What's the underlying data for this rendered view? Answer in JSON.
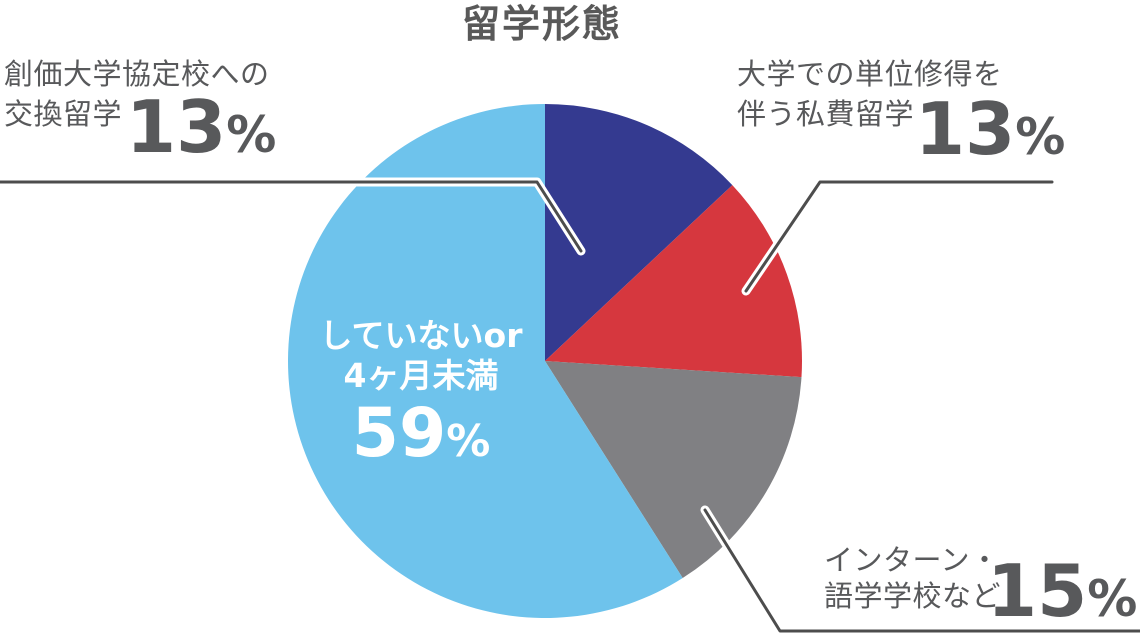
{
  "title": "留学形態",
  "chart_data": {
    "type": "pie",
    "title": "留学形態",
    "unit": "%",
    "direction": "clockwise",
    "start": "top",
    "legend": "none",
    "slices": [
      {
        "id": "exchange",
        "label": "創価大学協定校への交換留学",
        "value": 13,
        "color": "#343a90"
      },
      {
        "id": "private",
        "label": "大学での単位修得を伴う私費留学",
        "value": 13,
        "color": "#d6373e"
      },
      {
        "id": "intern",
        "label": "インターン・語学学校など",
        "value": 15,
        "color": "#808083"
      },
      {
        "id": "none",
        "label": "していないor4ヶ月未満",
        "value": 59,
        "color": "#6ec3ec"
      }
    ],
    "label_color": "#58595b",
    "leader_line_color": "#4d4d4d",
    "center_label_color": "#ffffff"
  },
  "callouts": {
    "exchange": {
      "line1": "創価大学協定校への",
      "line2": "交換留学",
      "value": "13",
      "unit": "%"
    },
    "private": {
      "line1": "大学での単位修得を",
      "line2": "伴う私費留学",
      "value": "13",
      "unit": "%"
    },
    "intern": {
      "line1": "インターン・",
      "line2": "語学学校など",
      "value": "15",
      "unit": "%"
    },
    "none": {
      "line1": "していないor",
      "line2": "4ヶ月未満",
      "value": "59",
      "unit": "%"
    }
  }
}
